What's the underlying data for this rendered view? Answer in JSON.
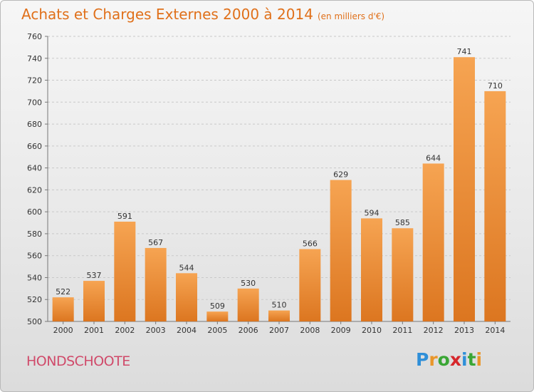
{
  "header": {
    "title": "Achats et Charges Externes 2000 à 2014",
    "subtitle": "(en milliers d'€)"
  },
  "footer": {
    "town": "HONDSCHOOTE",
    "logo_letters": [
      {
        "ch": "P",
        "color": "#2f8fd8"
      },
      {
        "ch": "r",
        "color": "#e9962a"
      },
      {
        "ch": "o",
        "color": "#3aa635"
      },
      {
        "ch": "x",
        "color": "#d6262b"
      },
      {
        "ch": "i",
        "color": "#2f8fd8"
      },
      {
        "ch": "t",
        "color": "#3aa635"
      },
      {
        "ch": "i",
        "color": "#e9962a"
      }
    ]
  },
  "colors": {
    "accent": "#e0701a",
    "bar_light": "#f6a452",
    "bar_dark": "#dc7620",
    "town": "#d04a6a"
  },
  "chart_data": {
    "type": "bar",
    "title": "Achats et Charges Externes 2000 à 2014",
    "subtitle": "(en milliers d'€)",
    "categories": [
      "2000",
      "2001",
      "2002",
      "2003",
      "2004",
      "2005",
      "2006",
      "2007",
      "2008",
      "2009",
      "2010",
      "2011",
      "2012",
      "2013",
      "2014"
    ],
    "values": [
      522,
      537,
      591,
      567,
      544,
      509,
      530,
      510,
      566,
      629,
      594,
      585,
      644,
      741,
      710
    ],
    "ylim": [
      500,
      760
    ],
    "yticks": [
      500,
      520,
      540,
      560,
      580,
      600,
      620,
      640,
      660,
      680,
      700,
      720,
      740,
      760
    ],
    "grid": true,
    "xlabel": "",
    "ylabel": ""
  }
}
